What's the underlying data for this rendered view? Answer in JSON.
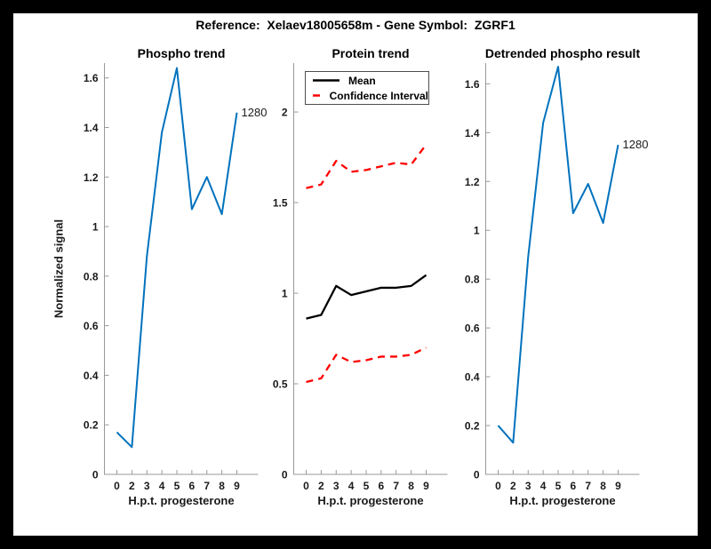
{
  "figure": {
    "title": "Reference:  Xelaev18005658m - Gene Symbol:  ZGRF1",
    "frame_color": "#000000",
    "canvas_color": "#ffffff",
    "axis_color": "#999999",
    "text_color": "#1a1a1a"
  },
  "chart_data": [
    {
      "type": "line",
      "title": "Phospho trend",
      "xlabel": "H.p.t. progesterone",
      "ylabel": "Normalized signal",
      "x_tick_labels": [
        "0",
        "2",
        "3",
        "4",
        "5",
        "6",
        "7",
        "8",
        "9"
      ],
      "ytick_values": [
        0,
        0.2,
        0.4,
        0.6,
        0.8,
        1,
        1.2,
        1.4,
        1.6
      ],
      "ytick_labels": [
        "0",
        "0.2",
        "0.4",
        "0.6",
        "0.8",
        "1",
        "1.2",
        "1.4",
        "1.6"
      ],
      "ylim": [
        0,
        1.66
      ],
      "grid": false,
      "series": [
        {
          "name": "phospho-signal",
          "color": "#0072BD",
          "width": 2,
          "dash": null,
          "values": [
            0.17,
            0.11,
            0.88,
            1.38,
            1.64,
            1.07,
            1.2,
            1.05,
            1.46
          ]
        }
      ],
      "annotation": {
        "text": "1280",
        "series": 0,
        "index": 8
      }
    },
    {
      "type": "line",
      "title": "Protein trend",
      "xlabel": "H.p.t. progesterone",
      "ylabel": "",
      "x_tick_labels": [
        "0",
        "2",
        "3",
        "4",
        "5",
        "6",
        "7",
        "8",
        "9"
      ],
      "ytick_values": [
        0,
        0.5,
        1,
        1.5,
        2
      ],
      "ytick_labels": [
        "0",
        "0.5",
        "1",
        "1.5",
        "2"
      ],
      "ylim": [
        0,
        2.27
      ],
      "grid": false,
      "legend": {
        "position": "top-left",
        "entries": [
          {
            "label": "Mean",
            "color": "#000000",
            "dash": false
          },
          {
            "label": "Confidence Interval",
            "color": "#ff0000",
            "dash": true
          }
        ]
      },
      "series": [
        {
          "name": "ci-upper",
          "color": "#ff0000",
          "width": 2.3,
          "dash": "8 6",
          "values": [
            1.58,
            1.6,
            1.73,
            1.67,
            1.68,
            1.7,
            1.72,
            1.71,
            1.82
          ]
        },
        {
          "name": "mean",
          "color": "#000000",
          "width": 2.3,
          "dash": null,
          "values": [
            0.86,
            0.88,
            1.04,
            0.99,
            1.01,
            1.03,
            1.03,
            1.04,
            1.1
          ]
        },
        {
          "name": "ci-lower",
          "color": "#ff0000",
          "width": 2.3,
          "dash": "8 6",
          "values": [
            0.51,
            0.53,
            0.66,
            0.62,
            0.63,
            0.65,
            0.65,
            0.66,
            0.7
          ]
        }
      ],
      "annotation": null
    },
    {
      "type": "line",
      "title": "Detrended phospho result",
      "xlabel": "H.p.t. progesterone",
      "ylabel": "",
      "x_tick_labels": [
        "0",
        "2",
        "3",
        "4",
        "5",
        "6",
        "7",
        "8",
        "9"
      ],
      "ytick_values": [
        0,
        0.2,
        0.4,
        0.6,
        0.8,
        1,
        1.2,
        1.4,
        1.6
      ],
      "ytick_labels": [
        "0",
        "0.2",
        "0.4",
        "0.6",
        "0.8",
        "1",
        "1.2",
        "1.4",
        "1.6"
      ],
      "ylim": [
        0,
        1.685
      ],
      "grid": false,
      "series": [
        {
          "name": "detrended-phospho",
          "color": "#0072BD",
          "width": 2,
          "dash": null,
          "values": [
            0.2,
            0.13,
            0.89,
            1.44,
            1.67,
            1.07,
            1.19,
            1.03,
            1.35
          ]
        }
      ],
      "annotation": {
        "text": "1280",
        "series": 0,
        "index": 8
      }
    }
  ]
}
